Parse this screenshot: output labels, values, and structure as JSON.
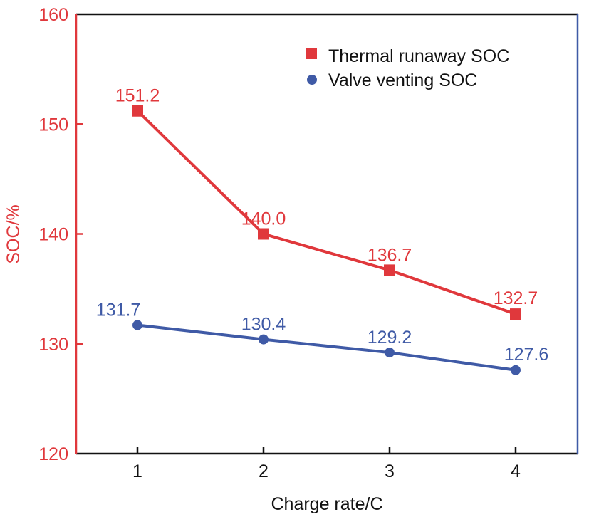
{
  "chart_data": {
    "type": "line",
    "title": "",
    "xlabel": "Charge rate/C",
    "ylabel": "SOC/%",
    "x": [
      1,
      2,
      3,
      4
    ],
    "x_tick_labels": [
      "1",
      "2",
      "3",
      "4"
    ],
    "xlim": [
      0.5,
      4.5
    ],
    "ylim": [
      120,
      160
    ],
    "y_tick_labels": [
      "120",
      "130",
      "140",
      "150",
      "160"
    ],
    "y_ticks": [
      120,
      130,
      140,
      150,
      160
    ],
    "grid": false,
    "legend_position": "top-right",
    "series": [
      {
        "name": "Thermal runaway SOC",
        "marker": "square",
        "color": "#e0383c",
        "values": [
          151.2,
          140.0,
          136.7,
          132.7
        ],
        "labels": [
          "151.2",
          "140.0",
          "136.7",
          "132.7"
        ]
      },
      {
        "name": "Valve venting SOC",
        "marker": "circle",
        "color": "#3f5aa6",
        "values": [
          131.7,
          130.4,
          129.2,
          127.6
        ],
        "labels": [
          "131.7",
          "130.4",
          "129.2",
          "127.6"
        ]
      }
    ],
    "axis_colors": {
      "left": "#e0383c",
      "right": "#3f5aa6",
      "top": "#111111",
      "bottom": "#111111"
    }
  }
}
